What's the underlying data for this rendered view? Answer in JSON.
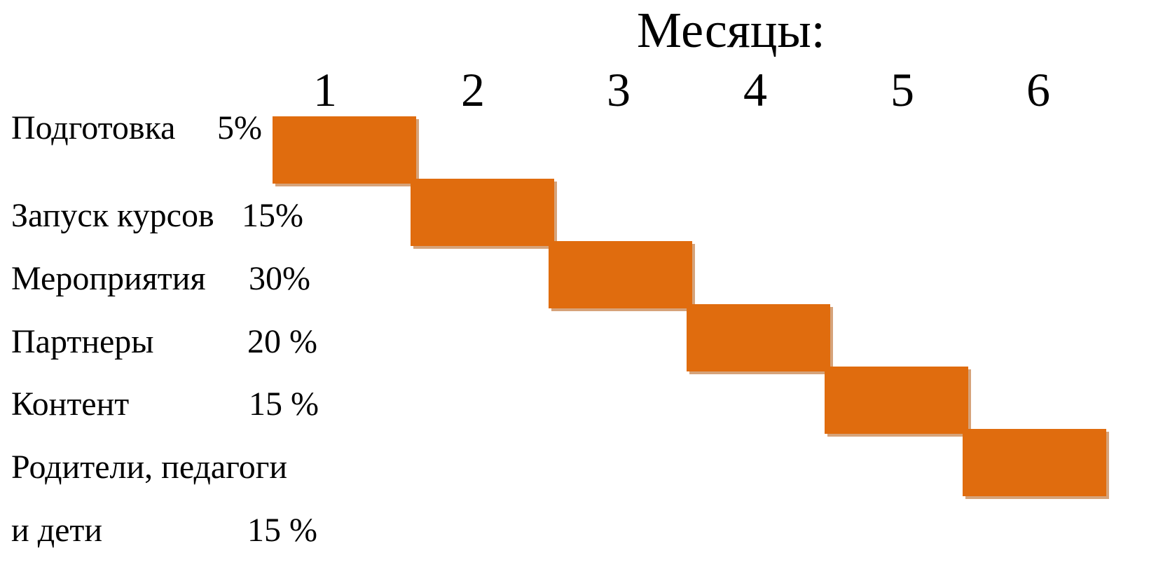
{
  "chart_data": {
    "type": "gantt",
    "title": "Месяцы:",
    "months": [
      "1",
      "2",
      "3",
      "4",
      "5",
      "6"
    ],
    "bar_color": "#e06c0e",
    "tasks": [
      {
        "label": "Подготовка",
        "share": "5%",
        "start_month": 1,
        "end_month": 1
      },
      {
        "label": "Запуск курсов",
        "share": "15%",
        "start_month": 2,
        "end_month": 2
      },
      {
        "label": "Мероприятия",
        "share": "30%",
        "start_month": 3,
        "end_month": 3
      },
      {
        "label": "Партнеры",
        "share": "20 %",
        "start_month": 4,
        "end_month": 4
      },
      {
        "label": "Контент",
        "share": "15 %",
        "start_month": 5,
        "end_month": 5
      },
      {
        "label": "Родители, педагоги",
        "label_line2": "и дети",
        "share": "15 %",
        "start_month": 6,
        "end_month": 6
      }
    ]
  }
}
